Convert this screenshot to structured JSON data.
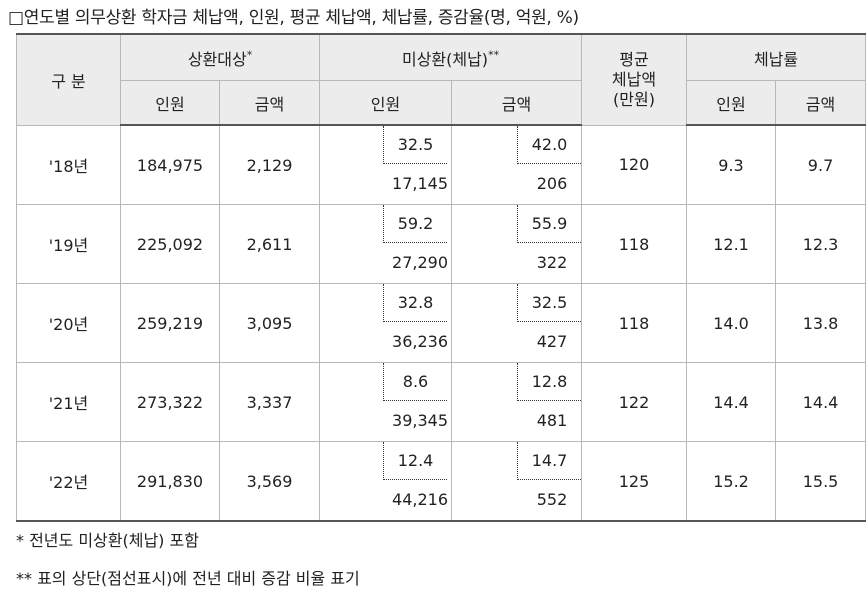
{
  "title": "□연도별 의무상환 학자금 체납액, 인원, 평균 체납액, 체납률, 증감율(명, 억원, %)",
  "headers": {
    "category": "구 분",
    "repay_target": "상환대상",
    "repay_target_mark": "*",
    "unpaid": "미상환(체납)",
    "unpaid_mark": "**",
    "avg_line1": "평균",
    "avg_line2": "체납액",
    "avg_line3": "(만원)",
    "rate": "체납률",
    "people": "인원",
    "amount": "금액"
  },
  "rows": [
    {
      "year": "'18년",
      "target_people": "184,975",
      "target_amount": "2,129",
      "unpaid_people_pct": "32.5",
      "unpaid_people": "17,145",
      "unpaid_amount_pct": "42.0",
      "unpaid_amount": "206",
      "avg": "120",
      "rate_people": "9.3",
      "rate_amount": "9.7"
    },
    {
      "year": "'19년",
      "target_people": "225,092",
      "target_amount": "2,611",
      "unpaid_people_pct": "59.2",
      "unpaid_people": "27,290",
      "unpaid_amount_pct": "55.9",
      "unpaid_amount": "322",
      "avg": "118",
      "rate_people": "12.1",
      "rate_amount": "12.3"
    },
    {
      "year": "'20년",
      "target_people": "259,219",
      "target_amount": "3,095",
      "unpaid_people_pct": "32.8",
      "unpaid_people": "36,236",
      "unpaid_amount_pct": "32.5",
      "unpaid_amount": "427",
      "avg": "118",
      "rate_people": "14.0",
      "rate_amount": "13.8"
    },
    {
      "year": "'21년",
      "target_people": "273,322",
      "target_amount": "3,337",
      "unpaid_people_pct": "8.6",
      "unpaid_people": "39,345",
      "unpaid_amount_pct": "12.8",
      "unpaid_amount": "481",
      "avg": "122",
      "rate_people": "14.4",
      "rate_amount": "14.4"
    },
    {
      "year": "'22년",
      "target_people": "291,830",
      "target_amount": "3,569",
      "unpaid_people_pct": "12.4",
      "unpaid_people": "44,216",
      "unpaid_amount_pct": "14.7",
      "unpaid_amount": "552",
      "avg": "125",
      "rate_people": "15.2",
      "rate_amount": "15.5"
    }
  ],
  "notes": {
    "note1": "* 전년도 미상환(체납) 포함",
    "note2": "** 표의 상단(점선표시)에 전년 대비 증감 비율 표기"
  }
}
